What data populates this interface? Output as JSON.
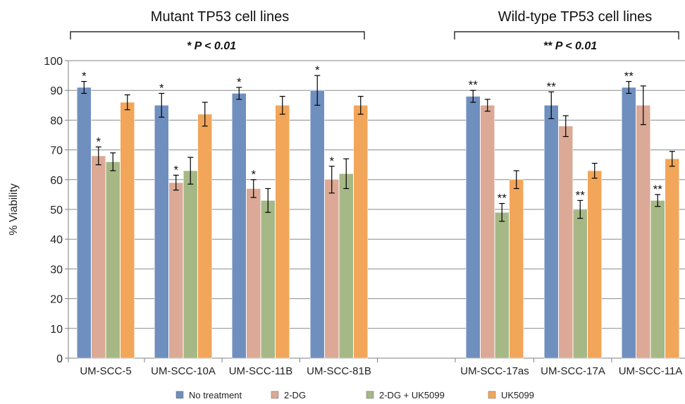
{
  "chart_data": {
    "type": "bar",
    "ylabel": "% Viability",
    "ylim": [
      0,
      100
    ],
    "yticks": [
      0,
      10,
      20,
      30,
      40,
      50,
      60,
      70,
      80,
      90,
      100
    ],
    "grid": true,
    "legend_position": "bottom",
    "groups": [
      {
        "label": "Mutant TP53 cell lines",
        "significance": "* P < 0.01",
        "categories": [
          "UM-SCC-5",
          "UM-SCC-10A",
          "UM-SCC-11B",
          "UM-SCC-81B"
        ]
      },
      {
        "label": "Wild-type TP53 cell lines",
        "significance": "** P < 0.01",
        "categories": [
          "UM-SCC-17as",
          "UM-SCC-17A",
          "UM-SCC-11A"
        ]
      }
    ],
    "categories": [
      "UM-SCC-5",
      "UM-SCC-10A",
      "UM-SCC-11B",
      "UM-SCC-81B",
      "",
      "UM-SCC-17as",
      "UM-SCC-17A",
      "UM-SCC-11A"
    ],
    "series": [
      {
        "name": "No treatment",
        "color": "#6f8fbf",
        "values": [
          91,
          85,
          89,
          90,
          null,
          88,
          85,
          91
        ],
        "errors": [
          2,
          4,
          2,
          5,
          null,
          2,
          4.5,
          2
        ],
        "markers": [
          "*",
          "*",
          "*",
          "*",
          "",
          "**",
          "**",
          "**"
        ]
      },
      {
        "name": "2-DG",
        "color": "#dba995",
        "values": [
          68,
          59,
          57,
          60,
          null,
          85,
          78,
          85
        ],
        "errors": [
          3,
          2.5,
          3,
          4.5,
          null,
          2,
          3.5,
          6.5
        ],
        "markers": [
          "*",
          "*",
          "*",
          "*",
          "",
          "",
          "",
          ""
        ]
      },
      {
        "name": "2-DG + UK5099",
        "color": "#a5b886",
        "values": [
          66,
          63,
          53,
          62,
          null,
          49,
          50,
          53
        ],
        "errors": [
          3,
          4.5,
          4,
          5,
          null,
          3,
          3,
          2
        ],
        "markers": [
          "",
          "",
          "",
          "",
          "",
          "**",
          "**",
          "**"
        ]
      },
      {
        "name": "UK5099",
        "color": "#f2a65a",
        "values": [
          86,
          82,
          85,
          85,
          null,
          60,
          63,
          67
        ],
        "errors": [
          2.5,
          4,
          3,
          3,
          null,
          3,
          2.5,
          2.5
        ],
        "markers": [
          "",
          "",
          "",
          "",
          "",
          "",
          "",
          ""
        ]
      }
    ]
  }
}
